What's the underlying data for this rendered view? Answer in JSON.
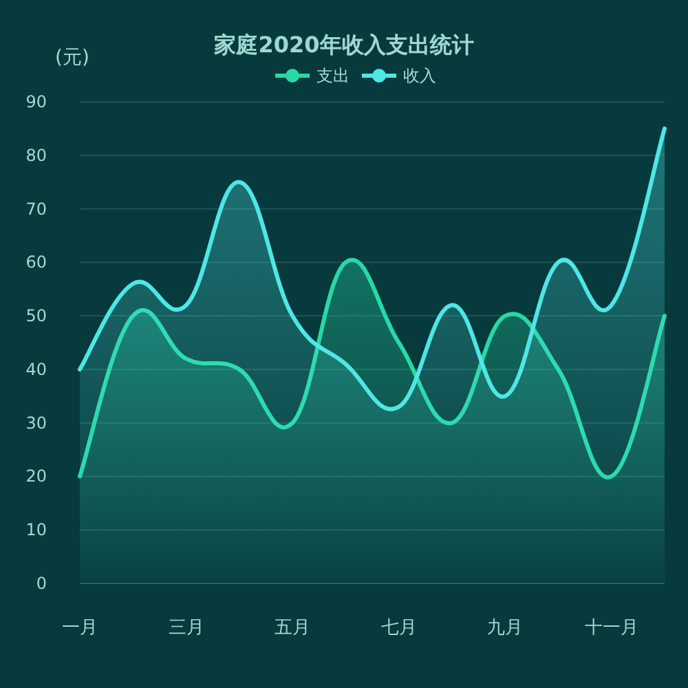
{
  "chart_data": {
    "type": "area",
    "title": "家庭2020年收入支出统计",
    "ylabel": "(元)",
    "categories": [
      "一月",
      null,
      "三月",
      null,
      "五月",
      null,
      "七月",
      null,
      "九月",
      null,
      "十一月",
      null
    ],
    "series": [
      {
        "name": "支出",
        "color": "#27d9a5",
        "values": [
          20,
          50,
          42,
          40,
          30,
          60,
          45,
          30,
          50,
          40,
          20,
          50
        ]
      },
      {
        "name": "收入",
        "color": "#4ee6e6",
        "values": [
          40,
          56,
          52,
          75,
          50,
          41,
          33,
          52,
          35,
          60,
          52,
          85
        ]
      }
    ],
    "ylim": [
      0,
      90
    ],
    "yticks": [
      0,
      10,
      20,
      30,
      40,
      50,
      60,
      70,
      80,
      90
    ],
    "grid": "y",
    "legend": "top",
    "marker": "none",
    "line_style": "solid"
  }
}
